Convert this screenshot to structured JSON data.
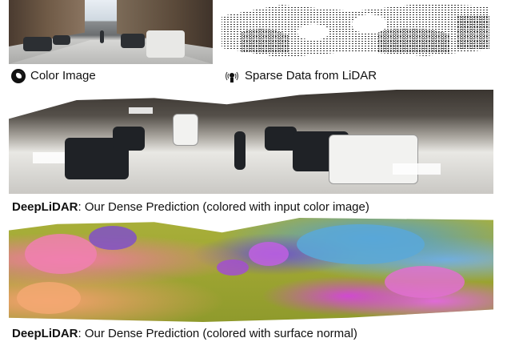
{
  "top_labels": {
    "color_image": "Color Image",
    "sparse_lidar": "Sparse Data from LiDAR"
  },
  "icons": {
    "color_image_icon": "camera-lens-icon",
    "lidar_icon": "lidar-sensor-icon"
  },
  "captions": {
    "dense_color": {
      "method": "DeepLiDAR",
      "text": ": Our Dense Prediction (colored with input color image)"
    },
    "dense_normal": {
      "method": "DeepLiDAR",
      "text": ": Our Dense Prediction (colored with surface normal)"
    }
  }
}
